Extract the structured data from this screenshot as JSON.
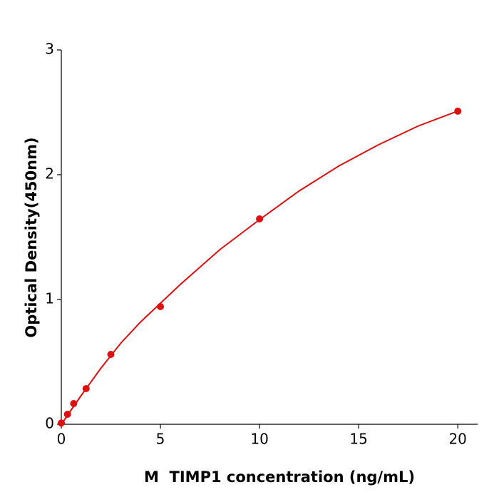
{
  "chart_data": {
    "type": "scatter",
    "x_label": "M  TIMP1 concentration (ng/mL)",
    "y_label": "Optical Density(450nm)",
    "x": [
      0,
      0.3125,
      0.625,
      1.25,
      2.5,
      5,
      10,
      20
    ],
    "values": [
      0.01,
      0.08,
      0.166,
      0.286,
      0.56,
      0.943,
      1.646,
      2.509
    ],
    "color": "#dd0f0f",
    "fit": {
      "x": [
        0,
        1,
        2,
        3,
        4,
        5,
        6,
        8,
        10,
        12,
        14,
        16,
        18,
        20
      ],
      "values": [
        0,
        0.23,
        0.45,
        0.65,
        0.82,
        0.97,
        1.12,
        1.4,
        1.64,
        1.87,
        2.07,
        2.24,
        2.39,
        2.51
      ]
    },
    "xlim": [
      0,
      21
    ],
    "ylim": [
      0,
      3
    ],
    "xticks": [
      0,
      5,
      10,
      15,
      20
    ],
    "yticks": [
      0,
      1,
      2,
      3
    ],
    "grid": false
  }
}
